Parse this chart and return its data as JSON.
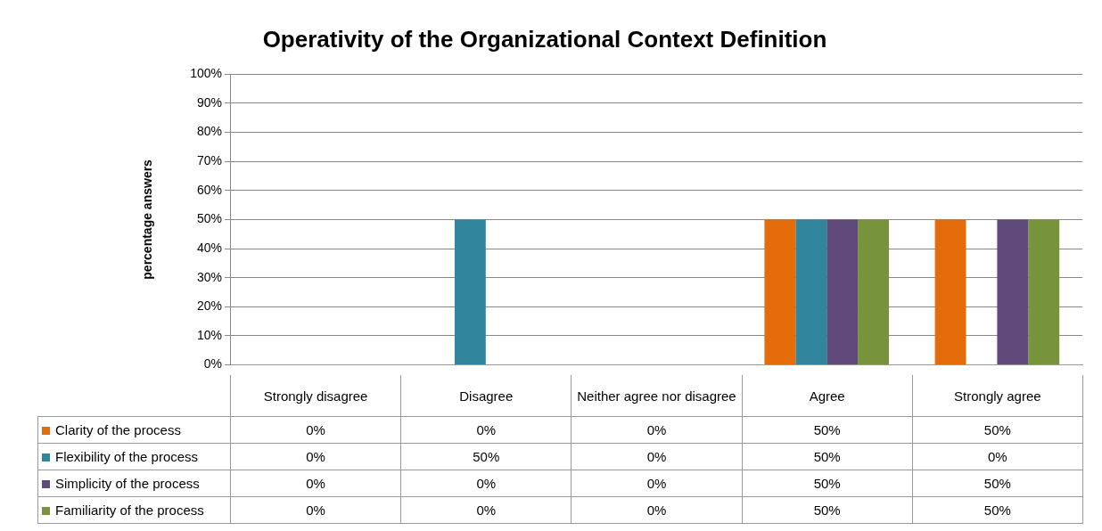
{
  "chart_data": {
    "type": "bar",
    "title": "Operativity of the Organizational Context Definition",
    "ylabel": "percentage answers",
    "categories": [
      "Strongly disagree",
      "Disagree",
      "Neither agree nor disagree",
      "Agree",
      "Strongly agree"
    ],
    "series": [
      {
        "name": "Clarity of the process",
        "color": "#e46c0a",
        "values": [
          0,
          0,
          0,
          50,
          50
        ],
        "value_labels": [
          "0%",
          "0%",
          "0%",
          "50%",
          "50%"
        ]
      },
      {
        "name": "Flexibility of the process",
        "color": "#31859c",
        "values": [
          0,
          50,
          0,
          50,
          0
        ],
        "value_labels": [
          "0%",
          "50%",
          "0%",
          "50%",
          "0%"
        ]
      },
      {
        "name": "Simplicity of the process",
        "color": "#604a7b",
        "values": [
          0,
          0,
          0,
          50,
          50
        ],
        "value_labels": [
          "0%",
          "0%",
          "0%",
          "50%",
          "50%"
        ]
      },
      {
        "name": "Familiarity of the process",
        "color": "#77933c",
        "values": [
          0,
          0,
          0,
          50,
          50
        ],
        "value_labels": [
          "0%",
          "0%",
          "0%",
          "50%",
          "50%"
        ]
      }
    ],
    "ylim": [
      0,
      100
    ],
    "yticks": [
      {
        "value": 0,
        "label": "0%"
      },
      {
        "value": 10,
        "label": "10%"
      },
      {
        "value": 20,
        "label": "20%"
      },
      {
        "value": 30,
        "label": "30%"
      },
      {
        "value": 40,
        "label": "40%"
      },
      {
        "value": 50,
        "label": "50%"
      },
      {
        "value": 60,
        "label": "60%"
      },
      {
        "value": 70,
        "label": "70%"
      },
      {
        "value": 80,
        "label": "80%"
      },
      {
        "value": 90,
        "label": "90%"
      },
      {
        "value": 100,
        "label": "100%"
      }
    ],
    "grid": "y",
    "legend": "bottom"
  }
}
